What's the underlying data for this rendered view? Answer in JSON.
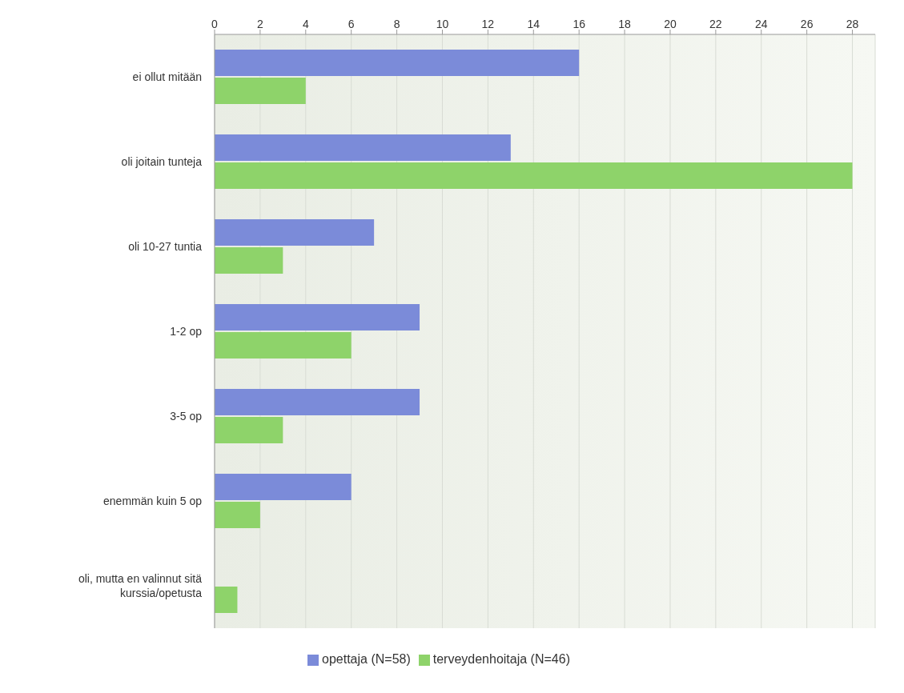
{
  "chart_data": {
    "type": "bar",
    "orientation": "horizontal",
    "categories": [
      "ei ollut mitään",
      "oli joitain tunteja",
      "oli 10-27 tuntia",
      "1-2 op",
      "3-5 op",
      "enemmän kuin 5 op",
      "oli, mutta en valinnut sitä kurssia/opetusta"
    ],
    "series": [
      {
        "name": "opettaja (N=58)",
        "color": "#7b8bd9",
        "values": [
          16,
          13,
          7,
          9,
          9,
          6,
          0
        ]
      },
      {
        "name": "terveydenhoitaja (N=46)",
        "color": "#8ed36a",
        "values": [
          4,
          28,
          3,
          6,
          3,
          2,
          1
        ]
      }
    ],
    "xlim": [
      0,
      29
    ],
    "xticks": [
      0,
      2,
      4,
      6,
      8,
      10,
      12,
      14,
      16,
      18,
      20,
      22,
      24,
      26,
      28
    ],
    "grid": "x",
    "legend": "bottom"
  }
}
